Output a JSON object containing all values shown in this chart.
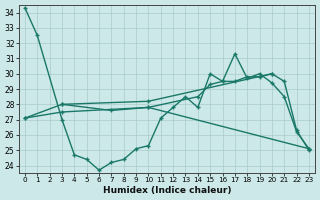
{
  "xlabel": "Humidex (Indice chaleur)",
  "bg_color": "#cce8e8",
  "line_color": "#1a7868",
  "grid_color": "#aacccc",
  "xlim": [
    -0.5,
    23.5
  ],
  "ylim": [
    23.5,
    34.5
  ],
  "yticks": [
    24,
    25,
    26,
    27,
    28,
    29,
    30,
    31,
    32,
    33,
    34
  ],
  "xticks": [
    0,
    1,
    2,
    3,
    4,
    5,
    6,
    7,
    8,
    9,
    10,
    11,
    12,
    13,
    14,
    15,
    16,
    17,
    18,
    19,
    20,
    21,
    22,
    23
  ],
  "series1_x": [
    0,
    1,
    3,
    4,
    5,
    6,
    7,
    8,
    9,
    10,
    11,
    12,
    13,
    14,
    15,
    16,
    17,
    18,
    19,
    20,
    21,
    22,
    23
  ],
  "series1_y": [
    34.3,
    32.5,
    27.0,
    24.7,
    24.4,
    23.7,
    24.2,
    24.4,
    25.1,
    25.3,
    27.1,
    27.8,
    28.5,
    27.8,
    30.0,
    29.5,
    31.3,
    29.7,
    30.0,
    29.4,
    28.5,
    26.2,
    25.1
  ],
  "series2_x": [
    0,
    3,
    10,
    23
  ],
  "series2_y": [
    27.1,
    27.5,
    27.8,
    25.1
  ],
  "series3_x": [
    0,
    3,
    10,
    20
  ],
  "series3_y": [
    27.1,
    28.0,
    28.2,
    30.0
  ],
  "series4_x": [
    3,
    7,
    10,
    14,
    15,
    16,
    17,
    18,
    19,
    20,
    21,
    22,
    23
  ],
  "series4_y": [
    28.0,
    27.6,
    27.8,
    28.5,
    29.3,
    29.5,
    29.5,
    29.8,
    29.8,
    30.0,
    29.5,
    26.3,
    25.0
  ]
}
